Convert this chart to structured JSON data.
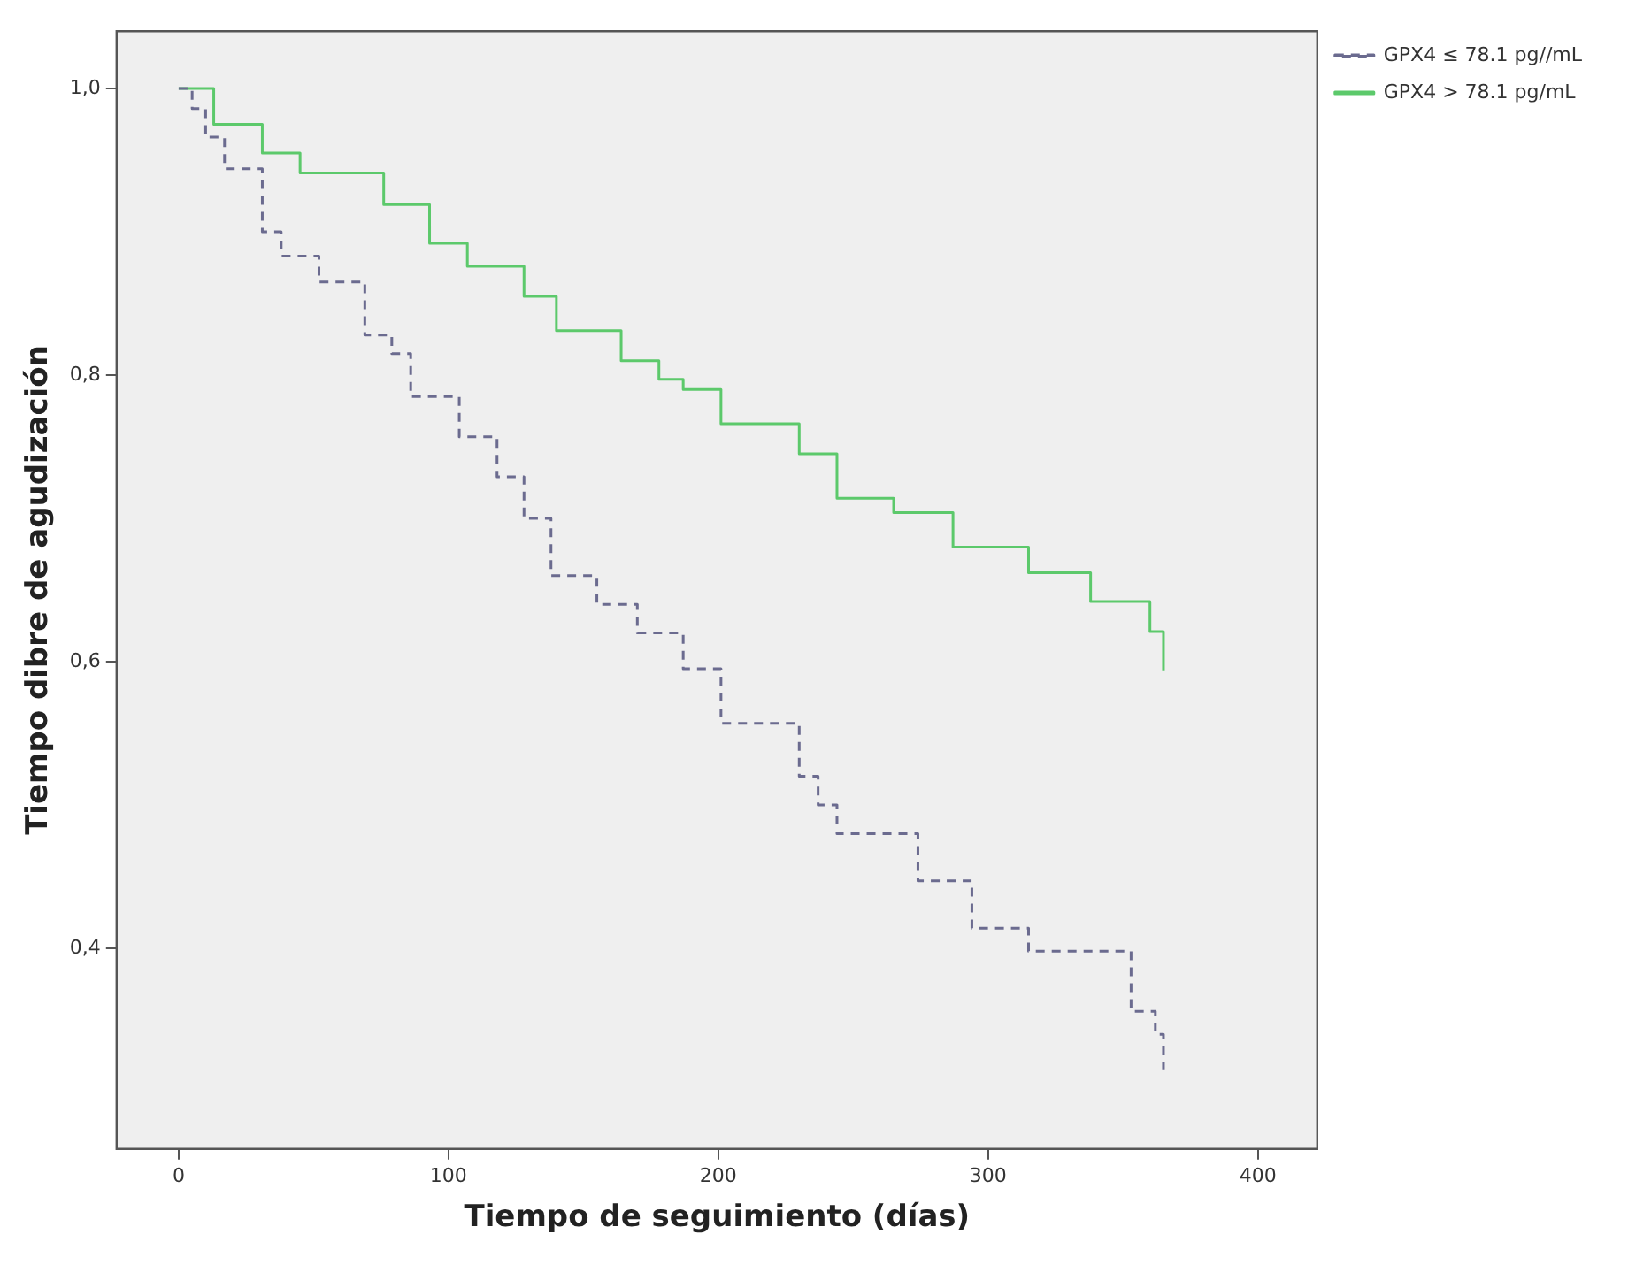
{
  "chart_data": {
    "type": "step",
    "xlabel": "Tiempo de seguimiento (días)",
    "ylabel": "Tiempo dibre de agudización",
    "xlim": [
      -23,
      422
    ],
    "xticks": [
      0,
      100,
      200,
      300,
      400
    ],
    "ylim": [
      0.26,
      1.04
    ],
    "yticks": [
      {
        "value": 0.4,
        "label": "0,4"
      },
      {
        "value": 0.6,
        "label": "0,6"
      },
      {
        "value": 0.8,
        "label": "0,8"
      },
      {
        "value": 1.0,
        "label": "1,0"
      }
    ],
    "grid": false,
    "legend": "top right",
    "marker": "none",
    "series": [
      {
        "name": "GPX4 ≤ 78.1 pg//mL",
        "color": "#6b6b8f",
        "line_style": "dashed",
        "x": [
          0,
          5,
          10,
          17,
          25,
          31,
          38,
          52,
          69,
          79,
          86,
          104,
          118,
          128,
          138,
          155,
          170,
          187,
          201,
          230,
          237,
          244,
          274,
          294,
          315,
          353,
          362,
          365
        ],
        "values": [
          1.0,
          0.986,
          0.966,
          0.944,
          0.944,
          0.9,
          0.883,
          0.865,
          0.828,
          0.815,
          0.785,
          0.757,
          0.729,
          0.7,
          0.66,
          0.64,
          0.62,
          0.595,
          0.557,
          0.52,
          0.5,
          0.48,
          0.447,
          0.414,
          0.398,
          0.356,
          0.34,
          0.315
        ]
      },
      {
        "name": "GPX4 > 78.1 pg/mL",
        "color": "#5cc96b",
        "line_style": "solid",
        "x": [
          0,
          13,
          25,
          31,
          45,
          76,
          93,
          107,
          128,
          140,
          164,
          178,
          187,
          201,
          230,
          244,
          265,
          287,
          315,
          338,
          360,
          365
        ],
        "values": [
          1.0,
          0.975,
          0.975,
          0.955,
          0.941,
          0.919,
          0.892,
          0.876,
          0.855,
          0.831,
          0.81,
          0.797,
          0.79,
          0.766,
          0.745,
          0.714,
          0.704,
          0.68,
          0.662,
          0.642,
          0.621,
          0.594
        ]
      }
    ]
  }
}
